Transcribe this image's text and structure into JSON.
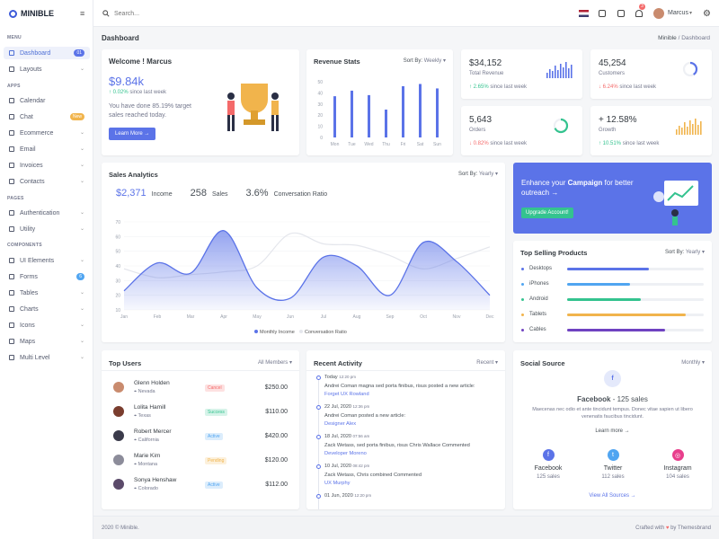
{
  "brand": "MINIBLE",
  "sidebar": {
    "menu_label": "MENU",
    "apps_label": "APPS",
    "pages_label": "PAGES",
    "components_label": "COMPONENTS",
    "items": [
      {
        "label": "Dashboard",
        "badge": "01"
      },
      {
        "label": "Layouts"
      },
      {
        "label": "Calendar"
      },
      {
        "label": "Chat",
        "badge": "New"
      },
      {
        "label": "Ecommerce"
      },
      {
        "label": "Email"
      },
      {
        "label": "Invoices"
      },
      {
        "label": "Contacts"
      },
      {
        "label": "Authentication"
      },
      {
        "label": "Utility"
      },
      {
        "label": "UI Elements"
      },
      {
        "label": "Forms",
        "badge": "6"
      },
      {
        "label": "Tables"
      },
      {
        "label": "Charts"
      },
      {
        "label": "Icons"
      },
      {
        "label": "Maps"
      },
      {
        "label": "Multi Level"
      }
    ]
  },
  "topbar": {
    "search_placeholder": "Search...",
    "user_name": "Marcus",
    "notif_count": "3"
  },
  "page": {
    "title": "Dashboard",
    "crumb_root": "Minible",
    "crumb_current": "Dashboard"
  },
  "welcome": {
    "title": "Welcome ! Marcus",
    "amount": "$9.84k",
    "change": "0.02%",
    "change_text": "since last week",
    "text1": "You have done 85.19% target",
    "text2": "sales reached today.",
    "button": "Learn More →"
  },
  "revenue_stats": {
    "title": "Revenue Stats",
    "sort_label": "Sort By:",
    "sort_value": "Weekly"
  },
  "stats": [
    {
      "value": "$34,152",
      "label": "Total Revenue",
      "change": "2.65%",
      "dir": "up",
      "since": "since last week"
    },
    {
      "value": "45,254",
      "label": "Customers",
      "change": "6.24%",
      "dir": "down",
      "since": "since last week"
    },
    {
      "value": "5,643",
      "label": "Orders",
      "change": "0.82%",
      "dir": "down",
      "since": "since last week"
    },
    {
      "value": "+ 12.58%",
      "label": "Growth",
      "change": "10.51%",
      "dir": "up",
      "since": "since last week"
    }
  ],
  "sales_analytics": {
    "title": "Sales Analytics",
    "sort_label": "Sort By:",
    "sort_value": "Yearly",
    "income": "$2,371",
    "income_label": "Income",
    "sales": "258",
    "sales_label": "Sales",
    "ratio": "3.6%",
    "ratio_label": "Conversation Ratio"
  },
  "campaign": {
    "text_a": "Enhance your",
    "text_b": "Campaign",
    "text_c": "for better",
    "text_d": "outreach →",
    "button": "Upgrade Account!"
  },
  "top_products": {
    "title": "Top Selling Products",
    "sort_label": "Sort By:",
    "sort_value": "Yearly",
    "items": [
      {
        "name": "Desktops",
        "value": 0.6,
        "color": "#5b73e8"
      },
      {
        "name": "iPhones",
        "value": 0.46,
        "color": "#50a5f1"
      },
      {
        "name": "Android",
        "value": 0.54,
        "color": "#34c38f"
      },
      {
        "name": "Tablets",
        "value": 0.87,
        "color": "#f1b44c"
      },
      {
        "name": "Cables",
        "value": 0.72,
        "color": "#6f42c1"
      }
    ]
  },
  "top_users": {
    "title": "Top Users",
    "filter": "All Members",
    "rows": [
      {
        "name": "Glenn Holden",
        "loc": "Nevada",
        "status": "Cancel",
        "amount": "$250.00",
        "sc": "#f46a6a",
        "sb": "#fde1e1"
      },
      {
        "name": "Lolita Hamill",
        "loc": "Texas",
        "status": "Success",
        "amount": "$110.00",
        "sc": "#34c38f",
        "sb": "#d6f3e9"
      },
      {
        "name": "Robert Mercer",
        "loc": "California",
        "status": "Active",
        "amount": "$420.00",
        "sc": "#50a5f1",
        "sb": "#dcedfc"
      },
      {
        "name": "Marie Kim",
        "loc": "Montana",
        "status": "Pending",
        "amount": "$120.00",
        "sc": "#f1b44c",
        "sb": "#fcf0db"
      },
      {
        "name": "Sonya Henshaw",
        "loc": "Colorado",
        "status": "Active",
        "amount": "$112.00",
        "sc": "#50a5f1",
        "sb": "#dcedfc"
      }
    ]
  },
  "recent_activity": {
    "title": "Recent Activity",
    "filter": "Recent",
    "items": [
      {
        "date": "Today",
        "time": "12:20 pm",
        "text": "Andrei Coman magna sed porta finibus, risus posted a new article:",
        "link": "Forget UX Rowland"
      },
      {
        "date": "22 Jul, 2020",
        "time": "12:36 pm",
        "text": "Andrei Coman posted a new article:",
        "link": "Designer Alex"
      },
      {
        "date": "18 Jul, 2020",
        "time": "07:56 am",
        "text": "Zack Wetass, sed porta finibus, risus Chris Wallace Commented",
        "link": "Developer Moreno"
      },
      {
        "date": "10 Jul, 2020",
        "time": "08:42 pm",
        "text": "Zack Wetass, Chris combined Commented",
        "link": "UX Murphy"
      },
      {
        "date": "01 Jun, 2020",
        "time": "12:20 pm",
        "text": "",
        "link": ""
      }
    ]
  },
  "social": {
    "title": "Social Source",
    "filter": "Monthly",
    "headline_a": "Facebook",
    "headline_b": "- 125 sales",
    "desc1": "Maecenas nec odio et ante tincidunt tempus. Donec vitae sapien ut libero",
    "desc2": "venenatis faucibus tincidunt.",
    "learn": "Learn more →",
    "items": [
      {
        "name": "Facebook",
        "sales": "125 sales",
        "color": "#5b73e8",
        "icon": "f"
      },
      {
        "name": "Twitter",
        "sales": "112 sales",
        "color": "#50a5f1",
        "icon": "t"
      },
      {
        "name": "Instagram",
        "sales": "104 sales",
        "color": "#e83e8c",
        "icon": "◎"
      }
    ],
    "view_all": "View All Sources →"
  },
  "footer": {
    "left": "2020 © Minible.",
    "right_a": "Crafted with",
    "right_b": "by Themesbrand"
  },
  "chart_data": [
    {
      "type": "bar",
      "categories": [
        "Mon",
        "Tue",
        "Wed",
        "Thu",
        "Fri",
        "Sat",
        "Sun"
      ],
      "values": [
        37,
        42,
        38,
        25,
        46,
        48,
        44
      ],
      "ylim": [
        0,
        50
      ],
      "yticks": [
        0,
        10,
        20,
        30,
        40,
        50
      ],
      "colors": {
        "bar": "#5b73e8"
      }
    },
    {
      "type": "area",
      "categories": [
        "Jan",
        "Feb",
        "Mar",
        "Apr",
        "May",
        "Jun",
        "Jul",
        "Aug",
        "Sep",
        "Oct",
        "Nov",
        "Dec"
      ],
      "series": [
        {
          "name": "Monthly Income",
          "values": [
            23,
            42,
            35,
            64,
            25,
            18,
            46,
            40,
            20,
            56,
            43,
            20
          ]
        },
        {
          "name": "Conversation Ratio",
          "values": [
            38,
            32,
            34,
            36,
            40,
            62,
            55,
            54,
            47,
            38,
            45,
            53
          ]
        }
      ],
      "ylim": [
        10,
        70
      ],
      "yticks": [
        10,
        20,
        30,
        40,
        50,
        60,
        70
      ],
      "legend": "bottom"
    }
  ]
}
